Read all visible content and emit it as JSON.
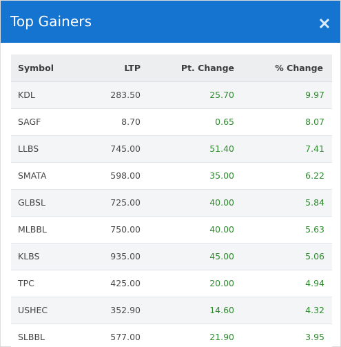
{
  "modal": {
    "title": "Top Gainers",
    "close_icon": "close-icon",
    "colors": {
      "header": "#1674d1",
      "positive": "#2e8b2e"
    }
  },
  "table": {
    "headers": {
      "symbol": "Symbol",
      "ltp": "LTP",
      "pt_change": "Pt. Change",
      "pct_change": "% Change"
    },
    "rows": [
      {
        "symbol": "KDL",
        "ltp": "283.50",
        "pt_change": "25.70",
        "pct_change": "9.97"
      },
      {
        "symbol": "SAGF",
        "ltp": "8.70",
        "pt_change": "0.65",
        "pct_change": "8.07"
      },
      {
        "symbol": "LLBS",
        "ltp": "745.00",
        "pt_change": "51.40",
        "pct_change": "7.41"
      },
      {
        "symbol": "SMATA",
        "ltp": "598.00",
        "pt_change": "35.00",
        "pct_change": "6.22"
      },
      {
        "symbol": "GLBSL",
        "ltp": "725.00",
        "pt_change": "40.00",
        "pct_change": "5.84"
      },
      {
        "symbol": "MLBBL",
        "ltp": "750.00",
        "pt_change": "40.00",
        "pct_change": "5.63"
      },
      {
        "symbol": "KLBS",
        "ltp": "935.00",
        "pt_change": "45.00",
        "pct_change": "5.06"
      },
      {
        "symbol": "TPC",
        "ltp": "425.00",
        "pt_change": "20.00",
        "pct_change": "4.94"
      },
      {
        "symbol": "USHEC",
        "ltp": "352.90",
        "pt_change": "14.60",
        "pct_change": "4.32"
      },
      {
        "symbol": "SLBBL",
        "ltp": "577.00",
        "pt_change": "21.90",
        "pct_change": "3.95"
      }
    ]
  }
}
